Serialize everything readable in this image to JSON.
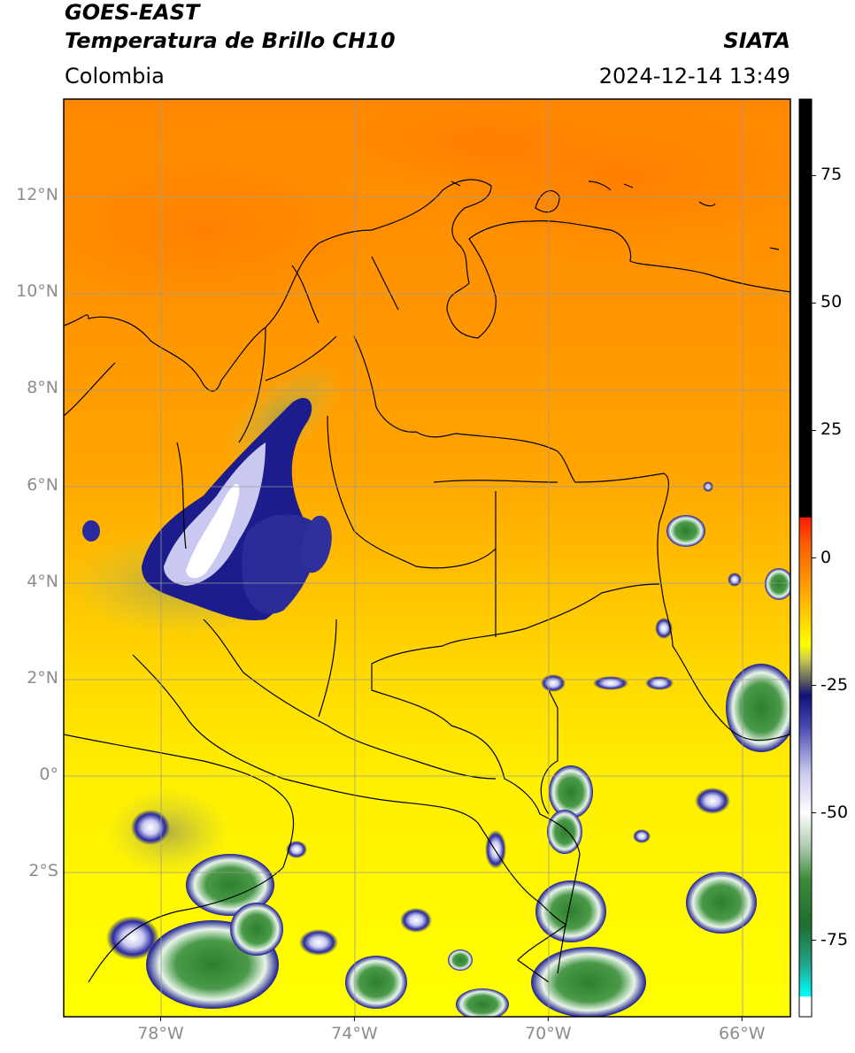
{
  "header": {
    "satellite": "GOES-EAST",
    "product": "Temperatura de Brillo CH10",
    "region": "Colombia",
    "agency": "SIATA",
    "timestamp": "2024-12-14 13:49"
  },
  "map": {
    "lon_range": [
      -80.0,
      -65.0
    ],
    "lat_range": [
      -5.0,
      14.0
    ],
    "lat_ticks": [
      {
        "value": 12,
        "label": "12°N"
      },
      {
        "value": 10,
        "label": "10°N"
      },
      {
        "value": 8,
        "label": "8°N"
      },
      {
        "value": 6,
        "label": "6°N"
      },
      {
        "value": 4,
        "label": "4°N"
      },
      {
        "value": 2,
        "label": "2°N"
      },
      {
        "value": 0,
        "label": "0°"
      },
      {
        "value": -2,
        "label": "2°S"
      }
    ],
    "lon_ticks": [
      {
        "value": -78,
        "label": "78°W"
      },
      {
        "value": -74,
        "label": "74°W"
      },
      {
        "value": -70,
        "label": "70°W"
      },
      {
        "value": -66,
        "label": "66°W"
      }
    ],
    "colors": {
      "warm_orange": "#ff8c00",
      "mid_orange": "#ffae00",
      "yellow": "#ffe600",
      "olive": "#b5b54a",
      "deep_blue": "#1c1c8c",
      "white_cloud": "#f2f2ff",
      "green": "#3a8a3a",
      "border": "#000000",
      "grid": "#9a9a9a"
    }
  },
  "colorbar": {
    "range": [
      -90,
      90
    ],
    "ticks": [
      {
        "value": 75,
        "label": "75"
      },
      {
        "value": 50,
        "label": "50"
      },
      {
        "value": 25,
        "label": "25"
      },
      {
        "value": 0,
        "label": "0"
      },
      {
        "value": -25,
        "label": "-25"
      },
      {
        "value": -50,
        "label": "-50"
      },
      {
        "value": -75,
        "label": "-75"
      }
    ],
    "stops": [
      {
        "value": 90,
        "color": "#000000"
      },
      {
        "value": 8,
        "color": "#000000"
      },
      {
        "value": 7.9,
        "color": "#ff1a00"
      },
      {
        "value": 3,
        "color": "#ff5a00"
      },
      {
        "value": -5,
        "color": "#ff9a00"
      },
      {
        "value": -12,
        "color": "#ffd200"
      },
      {
        "value": -17,
        "color": "#ffff00"
      },
      {
        "value": -20,
        "color": "#c8c850"
      },
      {
        "value": -24,
        "color": "#606060"
      },
      {
        "value": -27,
        "color": "#10107a"
      },
      {
        "value": -33,
        "color": "#4848b0"
      },
      {
        "value": -42,
        "color": "#c8c8ee"
      },
      {
        "value": -50,
        "color": "#ffffff"
      },
      {
        "value": -57,
        "color": "#a8c8a8"
      },
      {
        "value": -63,
        "color": "#3c8c3c"
      },
      {
        "value": -72,
        "color": "#1e6e2e"
      },
      {
        "value": -80,
        "color": "#20a890"
      },
      {
        "value": -86,
        "color": "#00ffff"
      },
      {
        "value": -86.1,
        "color": "#ffffff"
      },
      {
        "value": -90,
        "color": "#ffffff"
      }
    ]
  }
}
